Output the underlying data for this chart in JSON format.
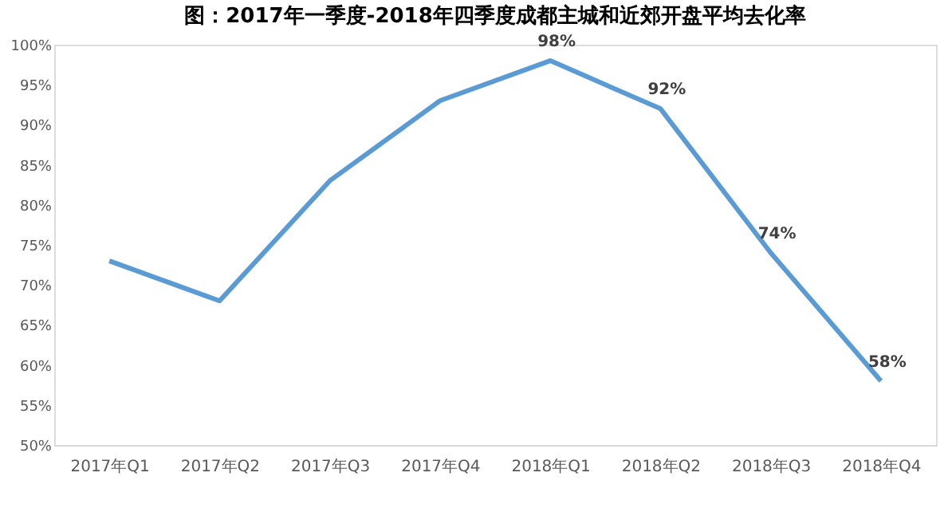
{
  "chart_data": {
    "type": "line",
    "title": "图：2017年一季度-2018年四季度成都主城和近郊开盘平均去化率",
    "categories": [
      "2017年Q1",
      "2017年Q2",
      "2017年Q3",
      "2017年Q4",
      "2018年Q1",
      "2018年Q2",
      "2018年Q3",
      "2018年Q4"
    ],
    "series": [
      {
        "color": "#5b9bd5",
        "values": [
          73,
          68,
          83,
          93,
          98,
          92,
          74,
          58
        ],
        "value_labels": [
          null,
          null,
          null,
          null,
          "98%",
          "92%",
          "74%",
          "58%"
        ]
      }
    ],
    "ylim": [
      50,
      100
    ],
    "yticks": [
      {
        "value": 50,
        "label": "50%"
      },
      {
        "value": 55,
        "label": "55%"
      },
      {
        "value": 60,
        "label": "60%"
      },
      {
        "value": 65,
        "label": "65%"
      },
      {
        "value": 70,
        "label": "70%"
      },
      {
        "value": 75,
        "label": "75%"
      },
      {
        "value": 80,
        "label": "80%"
      },
      {
        "value": 85,
        "label": "85%"
      },
      {
        "value": 90,
        "label": "90%"
      },
      {
        "value": 95,
        "label": "95%"
      },
      {
        "value": 100,
        "label": "100%"
      }
    ],
    "grid": false,
    "marker": "none",
    "line_style": "solid"
  }
}
